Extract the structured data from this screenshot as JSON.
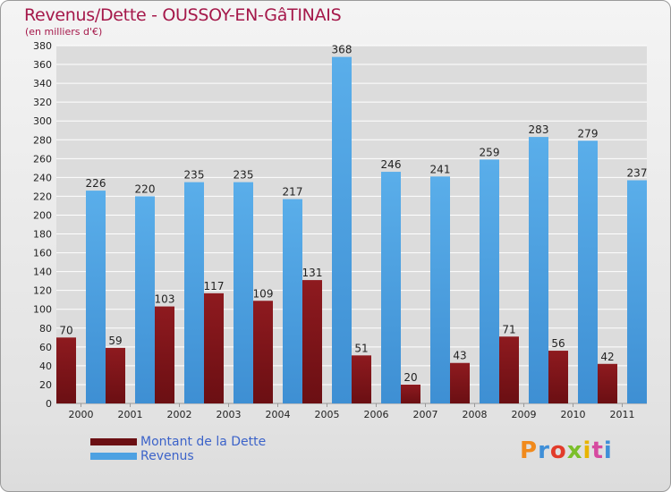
{
  "header": {
    "title": "Revenus/Dette - OUSSOY-EN-GâTINAIS",
    "subtitle": "(en milliers d'€)"
  },
  "colors": {
    "dette": "#6b0f13",
    "revenus": "#4da1e2",
    "grid": "#ffffff",
    "axis_text": "#222222"
  },
  "chart_data": {
    "type": "bar",
    "categories": [
      "2000",
      "2001",
      "2002",
      "2003",
      "2004",
      "2005",
      "2006",
      "2007",
      "2008",
      "2009",
      "2010",
      "2011"
    ],
    "series": [
      {
        "name": "Montant de la Dette",
        "values": [
          70,
          59,
          103,
          117,
          109,
          131,
          51,
          20,
          43,
          71,
          56,
          42
        ]
      },
      {
        "name": "Revenus",
        "values": [
          226,
          220,
          235,
          235,
          217,
          368,
          246,
          241,
          259,
          283,
          279,
          237
        ]
      }
    ],
    "title": "Revenus/Dette - OUSSOY-EN-GâTINAIS",
    "ylabel": "(en milliers d'€)",
    "ylim": [
      0,
      380
    ],
    "ytick_step": 20,
    "grid": true,
    "legend_position": "bottom-left"
  },
  "legend": {
    "items": [
      {
        "label": "Montant de la Dette"
      },
      {
        "label": "Revenus"
      }
    ]
  },
  "logo": {
    "letters": [
      "P",
      "r",
      "o",
      "x",
      "i",
      "t",
      "i"
    ],
    "colors": [
      "#f18a1c",
      "#3f8fd8",
      "#e23b2a",
      "#7bbf2a",
      "#e8b400",
      "#d64aa0",
      "#3f8fd8"
    ]
  }
}
